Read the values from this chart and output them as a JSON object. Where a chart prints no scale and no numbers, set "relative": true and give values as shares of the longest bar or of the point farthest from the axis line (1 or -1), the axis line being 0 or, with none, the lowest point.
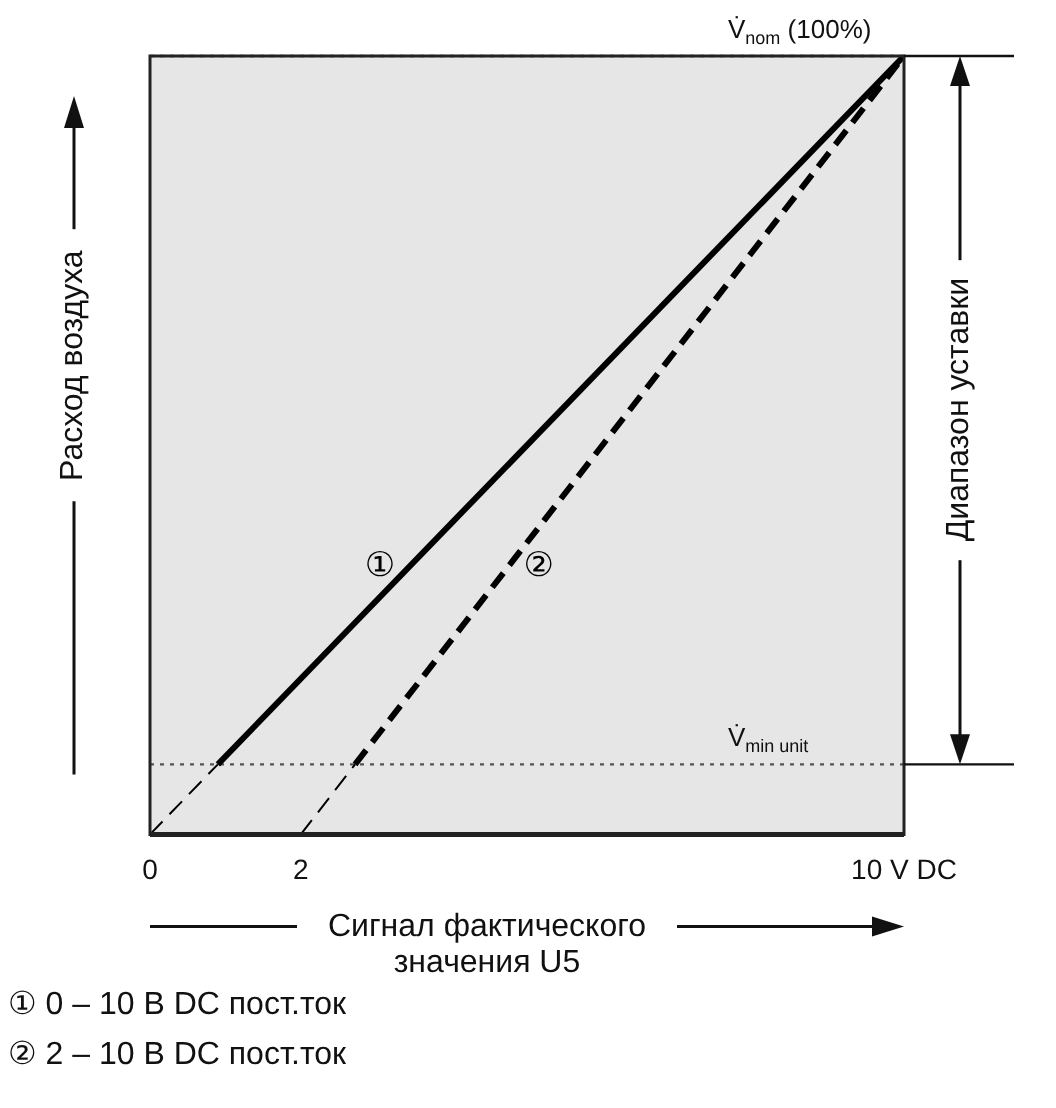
{
  "chart_data": {
    "type": "line",
    "relative": true,
    "xlabel": "Сигнал фактического значения U5",
    "ylabel": "Расход воздуха",
    "y2label": "Диапазон уставки",
    "xlim": [
      0,
      10
    ],
    "xticks": [
      0,
      2,
      {
        "value": 10,
        "label": "10 V DC"
      }
    ],
    "legend": false,
    "series": [
      {
        "name": "①",
        "color": "#000000",
        "line_style": "solid",
        "x": [
          0.9,
          10
        ],
        "values": [
          0.09,
          1
        ]
      },
      {
        "color": "#000000",
        "line_style": "dashed",
        "x": [
          0,
          0.9
        ],
        "values": [
          0,
          0.09
        ]
      },
      {
        "name": "②",
        "color": "#000000",
        "line_style": "dashed",
        "x": [
          2.72,
          10
        ],
        "values": [
          0.09,
          1
        ]
      },
      {
        "color": "#000000",
        "line_style": "dashed",
        "x": [
          2,
          2.72
        ],
        "values": [
          0,
          0.09
        ]
      }
    ],
    "ref_lines": [
      {
        "axis": "y",
        "value": 1,
        "label": "V̇$_{nom}$ (100%)",
        "color": "#555555",
        "line_style": "dotted"
      },
      {
        "axis": "y",
        "value": 0.09,
        "label": "V̇$_{min unit}$",
        "color": "#555555",
        "line_style": "dotted"
      }
    ],
    "annotations": [
      "① 0 – 10 В DC пост.ток",
      "② 2 – 10 В DC пост.ток"
    ]
  }
}
